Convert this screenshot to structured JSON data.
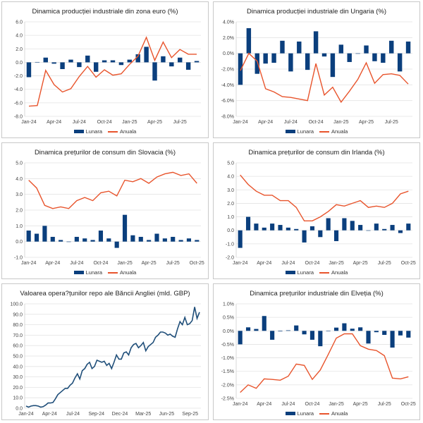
{
  "colors": {
    "lunara": "#0b3f7d",
    "anuala": "#e8542c",
    "line": "#1f4e79",
    "grid": "#e3e3e3"
  },
  "chart_data": [
    {
      "type": "bar+line",
      "title": "Dinamica producției industriale din zona euro (%)",
      "categories": [
        "Jan-24",
        "Feb-24",
        "Mar-24",
        "Apr-24",
        "May-24",
        "Jun-24",
        "Jul-24",
        "Aug-24",
        "Sep-24",
        "Oct-24",
        "Nov-24",
        "Dec-24",
        "Jan-25",
        "Feb-25",
        "Mar-25",
        "Apr-25",
        "May-25",
        "Jun-25",
        "Jul-25",
        "Aug-25",
        "Sep-25"
      ],
      "x_ticks": [
        "Jan-24",
        "Apr-24",
        "Jul-24",
        "Oct-24",
        "Jan-25",
        "Apr-25",
        "Jul-25"
      ],
      "ylim": [
        -8,
        6
      ],
      "yticks": [
        -8,
        -6,
        -4,
        -2,
        0,
        2,
        4,
        6
      ],
      "ytick_format": "0.0",
      "grid": true,
      "legend": "bottom",
      "series": [
        {
          "name": "Lunara",
          "kind": "bar",
          "values": [
            -2.2,
            0.05,
            0.7,
            -0.2,
            -1.0,
            0.4,
            -0.7,
            1.0,
            -1.4,
            0.3,
            0.3,
            -0.4,
            0.4,
            1.2,
            2.3,
            -2.7,
            0.9,
            -0.6,
            0.7,
            -1.1,
            0.2
          ]
        },
        {
          "name": "Anuala",
          "kind": "line",
          "values": [
            -6.5,
            -6.4,
            -1.2,
            -3.3,
            -4.4,
            -3.9,
            -2.1,
            -0.6,
            -2.2,
            -1.1,
            -1.9,
            -1.7,
            -0.3,
            0.9,
            3.7,
            0.3,
            3.0,
            0.7,
            1.9,
            1.2,
            1.2
          ]
        }
      ]
    },
    {
      "type": "bar+line",
      "title": "Dinamica producției industriale din Ungaria (%)",
      "categories": [
        "Jan-24",
        "Feb-24",
        "Mar-24",
        "Apr-24",
        "May-24",
        "Jun-24",
        "Jul-24",
        "Aug-24",
        "Sep-24",
        "Oct-24",
        "Nov-24",
        "Dec-24",
        "Jan-25",
        "Feb-25",
        "Mar-25",
        "Apr-25",
        "May-25",
        "Jun-25",
        "Jul-25",
        "Aug-25",
        "Sep-25"
      ],
      "x_ticks": [
        "Jan-24",
        "Apr-24",
        "Jul-24",
        "Oct-24",
        "Jan-25",
        "Apr-25",
        "Jul-25"
      ],
      "ylim": [
        -8,
        4
      ],
      "yticks": [
        -8,
        -6,
        -4,
        -2,
        0,
        2,
        4
      ],
      "ytick_format": "0.0%",
      "grid": true,
      "legend": "bottom",
      "series": [
        {
          "name": "Lunara",
          "kind": "bar",
          "values": [
            -4.0,
            3.2,
            -2.6,
            -1.3,
            -1.2,
            1.6,
            -2.3,
            1.5,
            -2.1,
            2.8,
            -0.4,
            -3.0,
            1.1,
            -1.1,
            0.0,
            1.0,
            -1.0,
            -1.2,
            1.6,
            -2.3,
            1.5
          ]
        },
        {
          "name": "Anuala",
          "kind": "line",
          "values": [
            -2.2,
            0.0,
            -1.0,
            -4.5,
            -4.9,
            -5.5,
            -5.6,
            -5.8,
            -6.0,
            -1.3,
            -5.3,
            -4.3,
            -6.2,
            -4.8,
            -3.3,
            -1.2,
            -3.8,
            -2.7,
            -2.6,
            -2.8,
            -3.9
          ]
        }
      ]
    },
    {
      "type": "bar+line",
      "title": "Dinamica prețurilor de consum din Slovacia (%)",
      "categories": [
        "Jan-24",
        "Feb-24",
        "Mar-24",
        "Apr-24",
        "May-24",
        "Jun-24",
        "Jul-24",
        "Aug-24",
        "Sep-24",
        "Oct-24",
        "Nov-24",
        "Dec-24",
        "Jan-25",
        "Feb-25",
        "Mar-25",
        "Apr-25",
        "May-25",
        "Jun-25",
        "Jul-25",
        "Aug-25",
        "Sep-25",
        "Oct-25"
      ],
      "x_ticks": [
        "Jan-24",
        "Apr-24",
        "Jul-24",
        "Oct-24",
        "Jan-25",
        "Apr-25",
        "Jul-25",
        "Oct-25"
      ],
      "ylim": [
        -1,
        5
      ],
      "yticks": [
        -1,
        0,
        1,
        2,
        3,
        4,
        5
      ],
      "ytick_format": "0.0",
      "grid": true,
      "legend": "bottom",
      "series": [
        {
          "name": "Lunara",
          "kind": "bar",
          "values": [
            0.7,
            0.5,
            1.0,
            0.3,
            0.1,
            0.0,
            0.3,
            0.2,
            0.1,
            0.7,
            0.2,
            -0.4,
            1.7,
            0.4,
            0.3,
            0.1,
            0.5,
            0.2,
            0.3,
            0.1,
            0.2,
            0.1
          ]
        },
        {
          "name": "Anuala",
          "kind": "line",
          "values": [
            3.9,
            3.4,
            2.3,
            2.1,
            2.2,
            2.1,
            2.6,
            2.8,
            2.6,
            3.1,
            3.2,
            2.9,
            3.9,
            3.8,
            4.0,
            3.7,
            4.1,
            4.3,
            4.4,
            4.2,
            4.3,
            3.7
          ]
        }
      ]
    },
    {
      "type": "bar+line",
      "title": "Dinamica prețurilor de consum din Irlanda (%)",
      "categories": [
        "Jan-24",
        "Feb-24",
        "Mar-24",
        "Apr-24",
        "May-24",
        "Jun-24",
        "Jul-24",
        "Aug-24",
        "Sep-24",
        "Oct-24",
        "Nov-24",
        "Dec-24",
        "Jan-25",
        "Feb-25",
        "Mar-25",
        "Apr-25",
        "May-25",
        "Jun-25",
        "Jul-25",
        "Aug-25",
        "Sep-25",
        "Oct-25"
      ],
      "x_ticks": [
        "Jan-24",
        "Apr-24",
        "Jul-24",
        "Oct-24",
        "Jan-25",
        "Apr-25",
        "Jul-25",
        "Oct-25"
      ],
      "ylim": [
        -2,
        5
      ],
      "yticks": [
        -2,
        -1,
        0,
        1,
        2,
        3,
        4,
        5
      ],
      "ytick_format": "0.0",
      "grid": true,
      "legend": "bottom",
      "series": [
        {
          "name": "Lunara",
          "kind": "bar",
          "values": [
            -1.3,
            1.0,
            0.5,
            0.2,
            0.5,
            0.4,
            0.2,
            0.1,
            -0.9,
            0.3,
            -0.5,
            0.9,
            -0.8,
            0.9,
            0.7,
            0.4,
            0.0,
            0.5,
            0.1,
            0.4,
            -0.2,
            0.5
          ]
        },
        {
          "name": "Anuala",
          "kind": "line",
          "values": [
            4.1,
            3.4,
            2.9,
            2.6,
            2.6,
            2.2,
            2.2,
            1.7,
            0.7,
            0.7,
            1.0,
            1.4,
            1.9,
            1.8,
            2.0,
            2.2,
            1.7,
            1.8,
            1.7,
            2.0,
            2.7,
            2.9
          ]
        }
      ]
    },
    {
      "type": "line",
      "title": "Valoarea opera?țunilor repo ale Băncii Angliei (mld. GBP)",
      "x_ticks": [
        "Jan-24",
        "Apr-24",
        "Jul-24",
        "Sep-24",
        "Dec-24",
        "Mar-25",
        "Jun-25",
        "Sep-25"
      ],
      "ylim": [
        0,
        100
      ],
      "yticks": [
        0,
        10,
        20,
        30,
        40,
        50,
        60,
        70,
        80,
        90,
        100
      ],
      "ytick_format": "0.0",
      "grid": true,
      "legend": "none",
      "series": [
        {
          "kind": "line",
          "values": [
            2,
            1,
            2,
            2.5,
            2.5,
            2,
            1,
            1.5,
            3,
            5,
            5,
            5.5,
            9,
            13,
            15,
            17,
            19,
            19,
            22,
            24,
            29,
            33,
            28,
            36,
            38,
            42,
            44,
            38,
            40,
            46,
            45,
            44,
            45,
            41,
            43,
            38,
            44,
            51,
            47,
            47,
            53,
            54,
            51,
            58,
            61,
            62,
            58,
            60,
            63,
            55,
            59,
            61,
            63,
            68,
            70,
            73,
            73,
            72,
            70,
            71,
            69,
            68,
            76,
            83,
            80,
            87,
            80,
            81,
            84,
            97,
            86,
            92
          ]
        }
      ]
    },
    {
      "type": "bar+line",
      "title": "Dinamica prețurilor industriale din Elveția (%)",
      "categories": [
        "Jan-24",
        "Feb-24",
        "Mar-24",
        "Apr-24",
        "May-24",
        "Jun-24",
        "Jul-24",
        "Aug-24",
        "Sep-24",
        "Oct-24",
        "Nov-24",
        "Dec-24",
        "Jan-25",
        "Feb-25",
        "Mar-25",
        "Apr-25",
        "May-25",
        "Jun-25",
        "Jul-25",
        "Aug-25",
        "Sep-25",
        "Oct-25"
      ],
      "x_ticks": [
        "Jan-24",
        "Apr-24",
        "Jul-24",
        "Oct-24",
        "Jan-25",
        "Apr-25",
        "Jul-25",
        "Oct-25"
      ],
      "ylim": [
        -2.5,
        1
      ],
      "yticks": [
        -2.5,
        -2,
        -1.5,
        -1,
        -0.5,
        0,
        0.5,
        1
      ],
      "ytick_format": "0.0%",
      "grid": true,
      "legend": "bottom",
      "series": [
        {
          "name": "Lunara",
          "kind": "bar",
          "values": [
            -0.5,
            0.13,
            0.07,
            0.55,
            -0.33,
            -0.02,
            0.02,
            0.2,
            -0.13,
            -0.33,
            -0.57,
            0.0,
            0.12,
            0.28,
            0.08,
            0.13,
            -0.47,
            -0.05,
            -0.15,
            -0.62,
            -0.17,
            -0.25
          ]
        },
        {
          "name": "Anuala",
          "kind": "line",
          "values": [
            -2.28,
            -2.0,
            -2.13,
            -1.78,
            -1.8,
            -1.83,
            -1.68,
            -1.23,
            -1.28,
            -1.8,
            -1.45,
            -0.87,
            -0.27,
            -0.11,
            -0.11,
            -0.55,
            -0.68,
            -0.73,
            -0.92,
            -1.75,
            -1.78,
            -1.7
          ]
        }
      ]
    }
  ]
}
